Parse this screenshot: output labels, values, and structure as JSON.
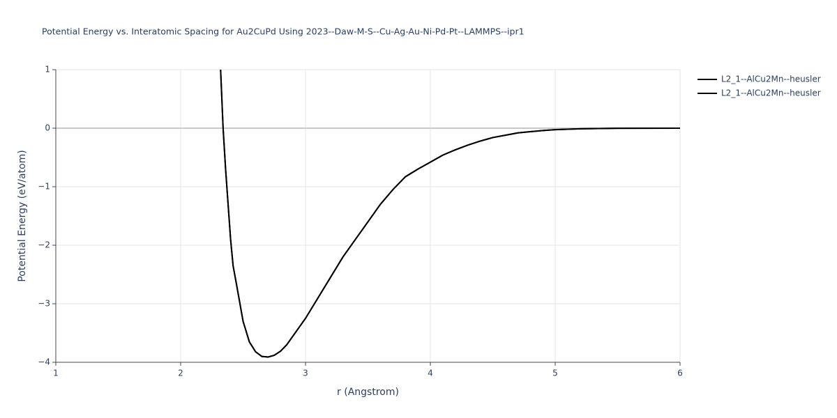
{
  "chart_data": {
    "type": "line",
    "title": "Potential Energy vs. Interatomic Spacing for Au2CuPd Using 2023--Daw-M-S--Cu-Ag-Au-Ni-Pd-Pt--LAMMPS--ipr1",
    "x_label": "r (Angstrom)",
    "y_label": "Potential Energy (eV/atom)",
    "x": [
      2.32,
      2.34,
      2.36,
      2.38,
      2.4,
      2.42,
      2.45,
      2.5,
      2.55,
      2.6,
      2.65,
      2.7,
      2.75,
      2.8,
      2.85,
      2.9,
      3.0,
      3.1,
      3.2,
      3.3,
      3.4,
      3.5,
      3.6,
      3.7,
      3.8,
      3.9,
      4.0,
      4.1,
      4.2,
      4.3,
      4.4,
      4.5,
      4.6,
      4.7,
      4.8,
      4.9,
      5.0,
      5.2,
      5.5,
      6.0
    ],
    "series": [
      {
        "name": "L2_1--AlCu2Mn--heusler",
        "color": "#000000",
        "values": [
          1.0,
          0.0,
          -0.7,
          -1.3,
          -1.9,
          -2.35,
          -2.7,
          -3.3,
          -3.65,
          -3.82,
          -3.9,
          -3.91,
          -3.88,
          -3.81,
          -3.7,
          -3.55,
          -3.25,
          -2.9,
          -2.55,
          -2.2,
          -1.9,
          -1.6,
          -1.3,
          -1.05,
          -0.83,
          -0.7,
          -0.58,
          -0.46,
          -0.37,
          -0.29,
          -0.22,
          -0.16,
          -0.12,
          -0.08,
          -0.06,
          -0.04,
          -0.025,
          -0.01,
          -0.002,
          0.0
        ]
      },
      {
        "name": "L2_1--AlCu2Mn--heusler",
        "color": "#000000",
        "values": [
          1.0,
          0.0,
          -0.7,
          -1.3,
          -1.9,
          -2.35,
          -2.7,
          -3.3,
          -3.65,
          -3.82,
          -3.9,
          -3.91,
          -3.88,
          -3.81,
          -3.7,
          -3.55,
          -3.25,
          -2.9,
          -2.55,
          -2.2,
          -1.9,
          -1.6,
          -1.3,
          -1.05,
          -0.83,
          -0.7,
          -0.58,
          -0.46,
          -0.37,
          -0.29,
          -0.22,
          -0.16,
          -0.12,
          -0.08,
          -0.06,
          -0.04,
          -0.025,
          -0.01,
          -0.002,
          0.0
        ]
      }
    ],
    "xlim": [
      1,
      6
    ],
    "xticks": [
      1,
      2,
      3,
      4,
      5,
      6
    ],
    "ylim": [
      -4,
      1
    ],
    "yticks": [
      {
        "value": -4,
        "label": "−4"
      },
      {
        "value": -3,
        "label": "−3"
      },
      {
        "value": -2,
        "label": "−2"
      },
      {
        "value": -1,
        "label": "−1"
      },
      0,
      1
    ],
    "grid": true,
    "legend": "right"
  }
}
